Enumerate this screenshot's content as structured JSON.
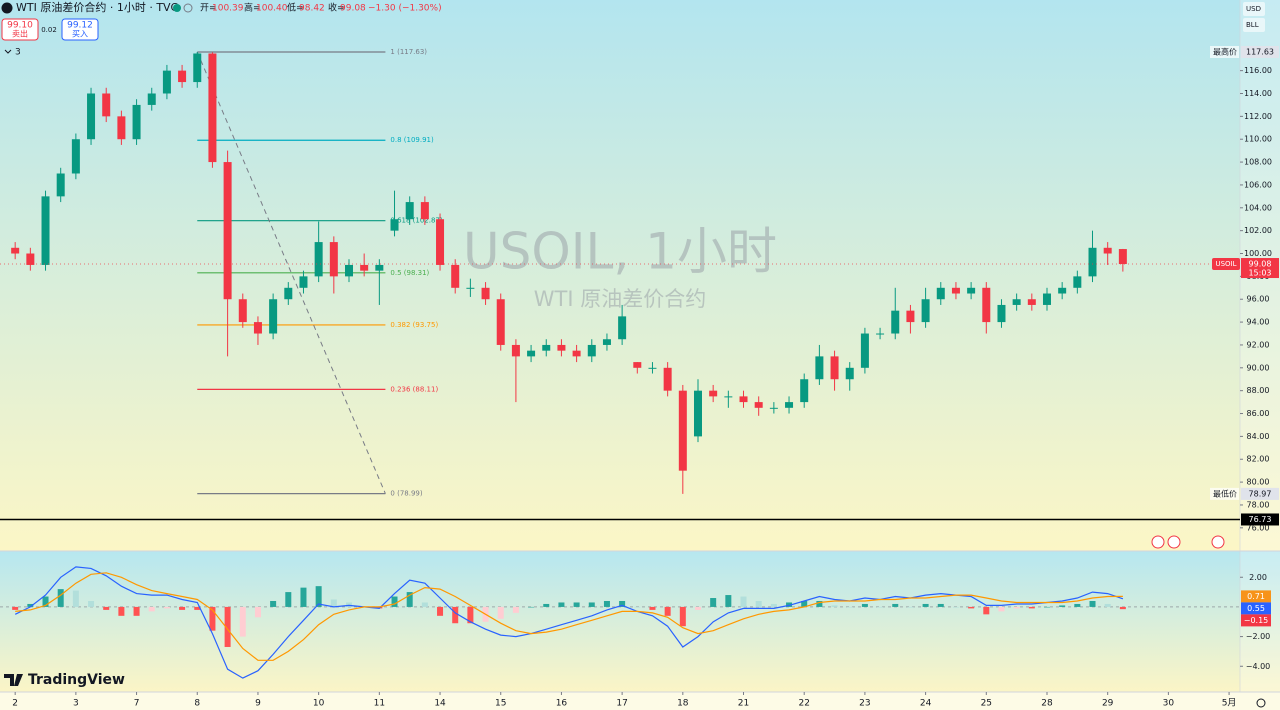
{
  "header": {
    "symbol": "WTI 原油差价合约 · 1小时 · TVC",
    "ohlc": [
      {
        "label": "开=",
        "value": "100.39"
      },
      {
        "label": "高=",
        "value": "100.40"
      },
      {
        "label": "低=",
        "value": "98.42"
      },
      {
        "label": "收=",
        "value": "99.08"
      }
    ],
    "change": "−1.30 (−1.30%)",
    "sell": {
      "price": "99.10",
      "label": "卖出"
    },
    "spread": "0.02",
    "buy": {
      "price": "99.12",
      "label": "买入"
    },
    "indicator_count": "3",
    "currency": "USD",
    "unit": "BLL",
    "logo": "TradingView",
    "watermark": {
      "title": "USOIL, 1小时",
      "subtitle": "WTI 原油差价合约"
    }
  },
  "chart_data": [
    {
      "type": "candlestick",
      "up_color": "#089981",
      "down_color": "#f23645",
      "x": [
        0,
        0.25,
        0.5,
        0.75,
        1,
        1.25,
        1.5,
        1.75,
        2,
        2.25,
        2.5,
        2.75,
        3,
        3.25,
        3.5,
        3.75,
        4,
        4.25,
        4.5,
        4.75,
        5,
        5.25,
        5.5,
        5.75,
        6,
        6.25,
        6.5,
        6.75,
        7,
        7.25,
        7.5,
        7.75,
        8,
        8.25,
        8.5,
        8.75,
        9,
        9.25,
        9.5,
        9.75,
        10,
        10.25,
        10.5,
        10.75,
        11,
        11.25,
        11.5,
        11.75,
        12,
        12.25,
        12.5,
        12.75,
        13,
        13.25,
        13.5,
        13.75,
        14,
        14.25,
        14.5,
        14.75,
        15,
        15.25,
        15.5,
        15.75,
        16,
        16.25,
        16.5,
        16.75,
        17,
        17.25,
        17.5,
        17.75,
        18,
        18.25
      ],
      "open": [
        100.5,
        100,
        99,
        105,
        107,
        110,
        114,
        112,
        110,
        113,
        114,
        116,
        115,
        117.5,
        108,
        96,
        94,
        93,
        96,
        97,
        98,
        101,
        98,
        99,
        98.5,
        102,
        103,
        104.5,
        103,
        99,
        97,
        97,
        96,
        92,
        91,
        91.5,
        92,
        91.5,
        91,
        92,
        92.5,
        90.5,
        90,
        90,
        88,
        84,
        88,
        87.5,
        87.5,
        87,
        86.5,
        86.5,
        87,
        89,
        91,
        89,
        90,
        93,
        93,
        95,
        94,
        96,
        97,
        96.5,
        97,
        94,
        95.5,
        96,
        95.5,
        96.5,
        97,
        98,
        100.5,
        100.39
      ],
      "high": [
        101,
        100.5,
        105.5,
        107.5,
        110.5,
        114.5,
        114.5,
        112.5,
        113.5,
        114.5,
        116.5,
        116.5,
        117.63,
        117.6,
        109,
        96.5,
        94.5,
        96.5,
        97.5,
        98.5,
        102.8,
        101.5,
        99.5,
        100,
        99.5,
        105.5,
        105,
        105,
        103.5,
        99.5,
        97.8,
        97.5,
        96.5,
        92.5,
        92,
        92.5,
        92.5,
        92,
        92.5,
        93,
        95.5,
        90.5,
        90.5,
        90.5,
        88.5,
        89,
        88.5,
        88,
        88,
        87.5,
        87,
        87.5,
        89.5,
        92,
        91.5,
        90.5,
        93.5,
        93.5,
        97,
        95.5,
        97,
        97.5,
        97.5,
        97.5,
        97.5,
        96,
        96.5,
        96.5,
        97,
        97.5,
        98.5,
        102,
        101,
        100.4
      ],
      "low": [
        99.5,
        98.5,
        98.5,
        104.5,
        106.5,
        109.5,
        111.5,
        109.5,
        109.5,
        112.5,
        113.5,
        114.5,
        114.5,
        107.5,
        91,
        93.5,
        92,
        92.5,
        95.5,
        96.5,
        97.5,
        96.5,
        97.5,
        98,
        95.5,
        101.5,
        102.5,
        102.5,
        98.5,
        96.5,
        96.2,
        95.5,
        91.5,
        87,
        90.5,
        91,
        91,
        90.5,
        90.5,
        91.5,
        92,
        89.5,
        89.5,
        87.5,
        78.97,
        83.5,
        87,
        86.5,
        86.5,
        85.8,
        86,
        86,
        86.5,
        88.5,
        88,
        88,
        89.5,
        92.5,
        92.5,
        93,
        93.5,
        95.5,
        96,
        96,
        93,
        93.5,
        95,
        95,
        95,
        96,
        96.5,
        97.5,
        99,
        98.42
      ],
      "close": [
        100,
        99,
        105,
        107,
        110,
        114,
        112,
        110,
        113,
        114,
        116,
        115,
        117.5,
        108,
        96,
        94,
        93,
        96,
        97,
        98,
        101,
        98,
        99,
        98.5,
        99,
        103,
        104.5,
        103,
        99,
        97,
        97,
        96,
        92,
        91,
        91.5,
        92,
        91.5,
        91,
        92,
        92.5,
        94.5,
        90,
        90,
        88,
        81,
        88,
        87.5,
        87.5,
        87,
        86.5,
        86.5,
        87,
        89,
        91,
        89,
        90,
        93,
        93,
        95,
        94,
        96,
        97,
        96.5,
        97,
        94,
        95.5,
        96,
        95.5,
        96.5,
        97,
        98,
        100.5,
        100,
        99.08
      ],
      "xlim": [
        -0.25,
        20.18
      ],
      "xticks": [
        {
          "value": 0,
          "label": "2"
        },
        {
          "value": 1,
          "label": "3"
        },
        {
          "value": 2,
          "label": "7"
        },
        {
          "value": 3,
          "label": "8"
        },
        {
          "value": 4,
          "label": "9"
        },
        {
          "value": 5,
          "label": "10"
        },
        {
          "value": 6,
          "label": "11"
        },
        {
          "value": 7,
          "label": "14"
        },
        {
          "value": 8,
          "label": "15"
        },
        {
          "value": 9,
          "label": "16"
        },
        {
          "value": 10,
          "label": "17"
        },
        {
          "value": 11,
          "label": "18"
        },
        {
          "value": 12,
          "label": "21"
        },
        {
          "value": 13,
          "label": "22"
        },
        {
          "value": 14,
          "label": "23"
        },
        {
          "value": 15,
          "label": "24"
        },
        {
          "value": 16,
          "label": "25"
        },
        {
          "value": 17,
          "label": "28"
        },
        {
          "value": 18,
          "label": "29"
        },
        {
          "value": 19,
          "label": "30"
        },
        {
          "value": 20,
          "label": "5月"
        }
      ],
      "ylim": [
        74.06,
        118.68
      ],
      "yticks": [
        {
          "value": 76,
          "label": "76.00"
        },
        {
          "value": 78,
          "label": "78.00"
        },
        {
          "value": 80,
          "label": "80.00"
        },
        {
          "value": 82,
          "label": "82.00"
        },
        {
          "value": 84,
          "label": "84.00"
        },
        {
          "value": 86,
          "label": "86.00"
        },
        {
          "value": 88,
          "label": "88.00"
        },
        {
          "value": 90,
          "label": "90.00"
        },
        {
          "value": 92,
          "label": "92.00"
        },
        {
          "value": 94,
          "label": "94.00"
        },
        {
          "value": 96,
          "label": "96.00"
        },
        {
          "value": 98,
          "label": "98.00"
        },
        {
          "value": 100,
          "label": "100.00"
        },
        {
          "value": 102,
          "label": "102.00"
        },
        {
          "value": 104,
          "label": "104.00"
        },
        {
          "value": 106,
          "label": "106.00"
        },
        {
          "value": 108,
          "label": "108.00"
        },
        {
          "value": 110,
          "label": "110.00"
        },
        {
          "value": 112,
          "label": "112.00"
        },
        {
          "value": 114,
          "label": "114.00"
        },
        {
          "value": 116,
          "label": "116.00"
        }
      ],
      "fib": {
        "xrange": [
          3,
          6.1
        ],
        "levels": [
          {
            "label": "1 (117.63)",
            "value": 117.63,
            "color": "#787b86"
          },
          {
            "label": "0.8 (109.91)",
            "value": 109.91,
            "color": "#00acc1"
          },
          {
            "label": "0.618 (102.87)",
            "value": 102.87,
            "color": "#089981"
          },
          {
            "label": "0.5 (98.31)",
            "value": 98.31,
            "color": "#4caf50"
          },
          {
            "label": "0.382 (93.75)",
            "value": 93.75,
            "color": "#ff9800"
          },
          {
            "label": "0.236 (88.11)",
            "value": 88.11,
            "color": "#f23645"
          },
          {
            "label": "0 (78.99)",
            "value": 78.99,
            "color": "#787b86"
          }
        ]
      },
      "markers": {
        "high": {
          "label": "最高价",
          "value": 117.63
        },
        "low": {
          "label": "最低价",
          "value": 78.97
        },
        "last": {
          "name": "USOIL",
          "value": 99.08,
          "countdown": "15:03",
          "color": "#f23645"
        },
        "line": {
          "value": 76.73,
          "color": "#000000"
        }
      }
    },
    {
      "type": "macd",
      "x": [
        0,
        0.25,
        0.5,
        0.75,
        1,
        1.25,
        1.5,
        1.75,
        2,
        2.25,
        2.5,
        2.75,
        3,
        3.25,
        3.5,
        3.75,
        4,
        4.25,
        4.5,
        4.75,
        5,
        5.25,
        5.5,
        5.75,
        6,
        6.25,
        6.5,
        6.75,
        7,
        7.25,
        7.5,
        7.75,
        8,
        8.25,
        8.5,
        8.75,
        9,
        9.25,
        9.5,
        9.75,
        10,
        10.25,
        10.5,
        10.75,
        11,
        11.25,
        11.5,
        11.75,
        12,
        12.25,
        12.5,
        12.75,
        13,
        13.25,
        13.5,
        13.75,
        14,
        14.25,
        14.5,
        14.75,
        15,
        15.25,
        15.5,
        15.75,
        16,
        16.25,
        16.5,
        16.75,
        17,
        17.25,
        17.5,
        17.75,
        18,
        18.25
      ],
      "series": [
        {
          "color": "#2962ff",
          "values": [
            -0.5,
            0,
            0.8,
            2,
            2.7,
            2.6,
            2.1,
            1.4,
            0.9,
            0.8,
            0.8,
            0.5,
            0.3,
            -1.8,
            -4.2,
            -4.8,
            -4.3,
            -3.2,
            -2,
            -0.9,
            0.2,
            0,
            0.1,
            0,
            -0.1,
            0.9,
            1.8,
            1.6,
            0.6,
            -0.4,
            -1,
            -1.5,
            -1.9,
            -2,
            -1.8,
            -1.5,
            -1.2,
            -0.9,
            -0.6,
            -0.2,
            0.1,
            -0.3,
            -0.6,
            -1.3,
            -2.7,
            -2,
            -1,
            -0.4,
            -0.1,
            -0.1,
            -0.1,
            0.1,
            0.4,
            0.7,
            0.5,
            0.4,
            0.6,
            0.5,
            0.7,
            0.6,
            0.8,
            0.9,
            0.8,
            0.7,
            0.1,
            0.1,
            0.2,
            0.2,
            0.3,
            0.4,
            0.6,
            1,
            0.9,
            0.55
          ]
        },
        {
          "color": "#ff9800",
          "values": [
            -0.3,
            -0.2,
            0.1,
            0.8,
            1.6,
            2.2,
            2.3,
            2,
            1.5,
            1.1,
            0.9,
            0.7,
            0.5,
            -0.2,
            -1.5,
            -2.8,
            -3.6,
            -3.6,
            -3,
            -2.2,
            -1.2,
            -0.5,
            -0.2,
            0,
            0,
            0.2,
            0.8,
            1.3,
            1.2,
            0.7,
            0.1,
            -0.5,
            -1.1,
            -1.6,
            -1.8,
            -1.7,
            -1.5,
            -1.2,
            -0.9,
            -0.6,
            -0.3,
            -0.3,
            -0.4,
            -0.7,
            -1.4,
            -1.8,
            -1.6,
            -1.2,
            -0.8,
            -0.5,
            -0.3,
            -0.2,
            0,
            0.3,
            0.4,
            0.4,
            0.4,
            0.5,
            0.5,
            0.6,
            0.6,
            0.7,
            0.8,
            0.8,
            0.6,
            0.4,
            0.3,
            0.3,
            0.3,
            0.3,
            0.4,
            0.6,
            0.7,
            0.71
          ]
        }
      ],
      "histogram": {
        "colors": [
          "#26a69a",
          "#b2dfdb",
          "#ff5252",
          "#ffcdd2"
        ],
        "values": [
          -0.2,
          0.2,
          0.7,
          1.2,
          1.1,
          0.4,
          -0.2,
          -0.6,
          -0.6,
          -0.3,
          -0.1,
          -0.2,
          -0.2,
          -1.6,
          -2.7,
          -2,
          -0.7,
          0.4,
          1,
          1.3,
          1.4,
          0.5,
          0.3,
          0,
          -0.1,
          0.7,
          1,
          0.3,
          -0.6,
          -1.1,
          -1.1,
          -1,
          -0.8,
          -0.4,
          0,
          0.2,
          0.3,
          0.3,
          0.3,
          0.4,
          0.4,
          0,
          -0.2,
          -0.6,
          -1.3,
          -0.2,
          0.6,
          0.8,
          0.7,
          0.4,
          0.2,
          0.3,
          0.4,
          0.4,
          0.1,
          0,
          0.2,
          0,
          0.2,
          0,
          0.2,
          0.2,
          0,
          -0.1,
          -0.5,
          -0.3,
          -0.1,
          -0.1,
          0,
          0.1,
          0.2,
          0.4,
          0.2,
          -0.15
        ]
      },
      "ylim": [
        -5.6,
        3.5
      ],
      "yticks": [
        {
          "value": 2,
          "label": "2.00"
        },
        {
          "value": -2,
          "label": "−2.00"
        },
        {
          "value": -4,
          "label": "−4.00"
        }
      ],
      "last_labels": [
        {
          "value": 0.71,
          "label": "0.71",
          "color": "#f7931a"
        },
        {
          "value": 0.55,
          "label": "0.55",
          "color": "#2962ff"
        },
        {
          "value": -0.15,
          "label": "−0.15",
          "color": "#f23645"
        }
      ]
    }
  ]
}
